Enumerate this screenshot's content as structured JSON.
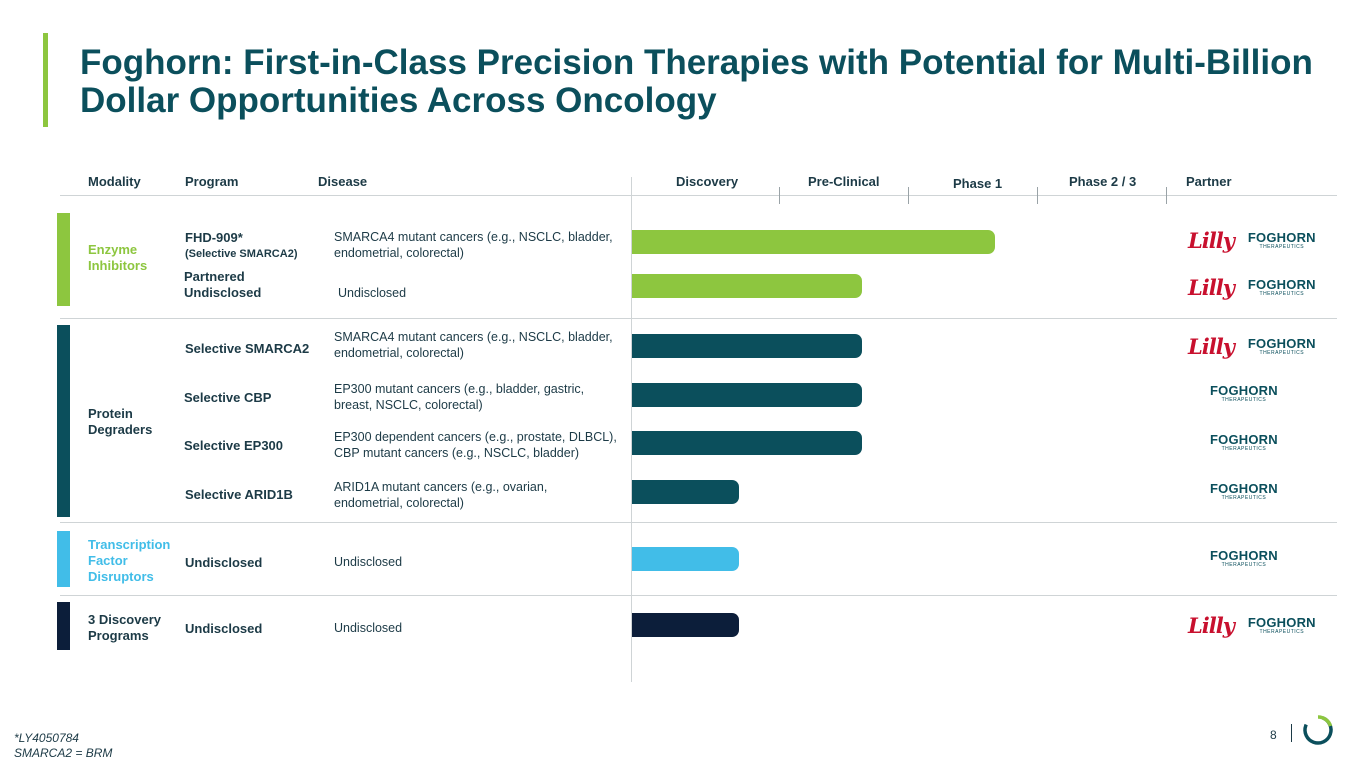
{
  "title": "Foghorn: First-in-Class Precision Therapies with Potential for Multi-Billion Dollar Opportunities Across Oncology",
  "headers": {
    "modality": "Modality",
    "program": "Program",
    "disease": "Disease",
    "discovery": "Discovery",
    "preclinical": "Pre-Clinical",
    "phase1": "Phase 1",
    "phase23": "Phase 2 / 3",
    "partner": "Partner"
  },
  "modalities": [
    {
      "label_lines": [
        "Enzyme",
        "Inhibitors"
      ],
      "color": "#8dc63f"
    },
    {
      "label_lines": [
        "Protein",
        "Degraders"
      ],
      "color": "#0b4f5c"
    },
    {
      "label_lines": [
        "Transcription",
        "Factor",
        "Disruptors"
      ],
      "color": "#41bde8"
    },
    {
      "label_lines": [
        "3 Discovery",
        "Programs"
      ],
      "color": "#0c1e3a"
    }
  ],
  "programs": [
    {
      "program_lines": [
        "FHD-909*"
      ],
      "program_sub": "(Selective SMARCA2)",
      "disease_lines": [
        "SMARCA4 mutant cancers (e.g., NSCLC, bladder,",
        "endometrial, colorectal)"
      ],
      "stage_progress": 0.68,
      "color": "#8dc63f",
      "partners": [
        "Lilly",
        "FOGHORN"
      ]
    },
    {
      "program_lines": [
        "Partnered",
        "Undisclosed"
      ],
      "program_sub": "",
      "disease_lines": [
        "Undisclosed"
      ],
      "stage_progress": 0.43,
      "color": "#8dc63f",
      "partners": [
        "Lilly",
        "FOGHORN"
      ]
    },
    {
      "program_lines": [
        "Selective SMARCA2"
      ],
      "program_sub": "",
      "disease_lines": [
        "SMARCA4 mutant cancers (e.g., NSCLC, bladder,",
        "endometrial, colorectal)"
      ],
      "stage_progress": 0.43,
      "color": "#0b4f5c",
      "partners": [
        "Lilly",
        "FOGHORN"
      ]
    },
    {
      "program_lines": [
        "Selective CBP"
      ],
      "program_sub": "",
      "disease_lines": [
        "EP300 mutant cancers (e.g., bladder, gastric,",
        "breast, NSCLC, colorectal)"
      ],
      "stage_progress": 0.43,
      "color": "#0b4f5c",
      "partners": [
        "FOGHORN"
      ]
    },
    {
      "program_lines": [
        "Selective EP300"
      ],
      "program_sub": "",
      "disease_lines": [
        "EP300 dependent cancers (e.g., prostate, DLBCL),",
        "CBP mutant cancers (e.g., NSCLC, bladder)"
      ],
      "stage_progress": 0.43,
      "color": "#0b4f5c",
      "partners": [
        "FOGHORN"
      ]
    },
    {
      "program_lines": [
        "Selective ARID1B"
      ],
      "program_sub": "",
      "disease_lines": [
        "ARID1A mutant cancers (e.g., ovarian,",
        "endometrial, colorectal)"
      ],
      "stage_progress": 0.2,
      "color": "#0b4f5c",
      "partners": [
        "FOGHORN"
      ]
    },
    {
      "program_lines": [
        "Undisclosed"
      ],
      "program_sub": "",
      "disease_lines": [
        "Undisclosed"
      ],
      "stage_progress": 0.2,
      "color": "#41bde8",
      "partners": [
        "FOGHORN"
      ]
    },
    {
      "program_lines": [
        "Undisclosed"
      ],
      "program_sub": "",
      "disease_lines": [
        "Undisclosed"
      ],
      "stage_progress": 0.2,
      "color": "#0c1e3a",
      "partners": [
        "Lilly",
        "FOGHORN"
      ]
    }
  ],
  "foghorn_tagline": "THERAPEUTICS",
  "footnotes": [
    "*LY4050784",
    "SMARCA2 = BRM"
  ],
  "page_number": "8"
}
